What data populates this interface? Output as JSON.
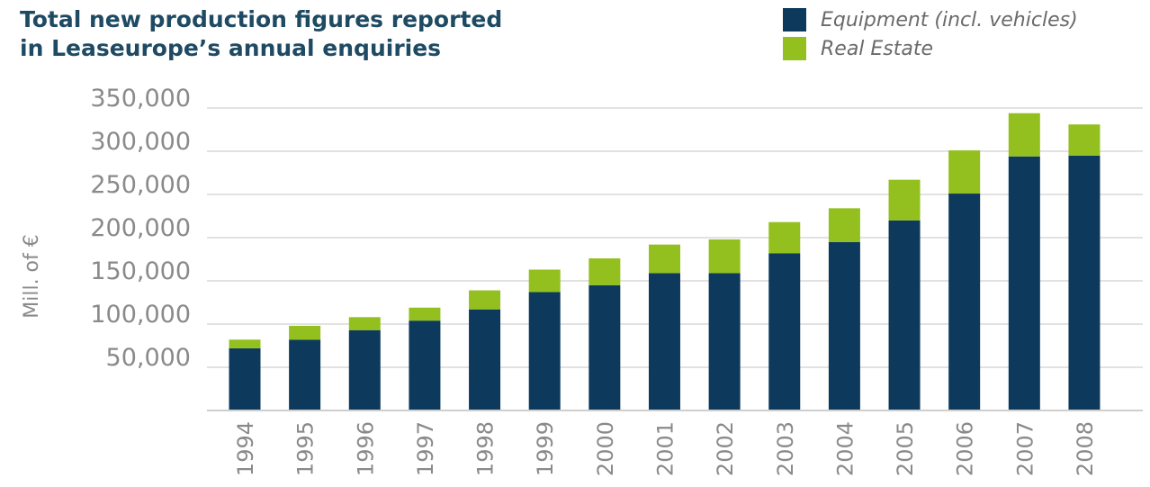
{
  "chart_data": {
    "type": "bar",
    "stacked": true,
    "title": [
      "Total new production figures reported",
      "in Leaseurope’s annual enquiries"
    ],
    "ylabel": "Mill. of €",
    "xlabel": "",
    "ylim": [
      0,
      350000
    ],
    "yticks": [
      50000,
      100000,
      150000,
      200000,
      250000,
      300000,
      350000
    ],
    "ytick_labels": [
      "50,000",
      "100,000",
      "150,000",
      "200,000",
      "250,000",
      "300,000",
      "350,000"
    ],
    "grid": true,
    "legend_position": "top-right",
    "categories": [
      "1994",
      "1995",
      "1996",
      "1997",
      "1998",
      "1999",
      "2000",
      "2001",
      "2002",
      "2003",
      "2004",
      "2005",
      "2006",
      "2007",
      "2008"
    ],
    "series": [
      {
        "name": "Equipment (incl. vehicles)",
        "color": "#0d3a5c",
        "values": [
          72000,
          82000,
          93000,
          104000,
          117000,
          137000,
          145000,
          159000,
          159000,
          182000,
          195000,
          220000,
          251000,
          294000,
          295000
        ]
      },
      {
        "name": "Real Estate",
        "color": "#93c01f",
        "values": [
          10000,
          16000,
          15000,
          15000,
          22000,
          26000,
          31000,
          33000,
          39000,
          36000,
          39000,
          47000,
          50000,
          50000,
          36000
        ]
      }
    ]
  }
}
